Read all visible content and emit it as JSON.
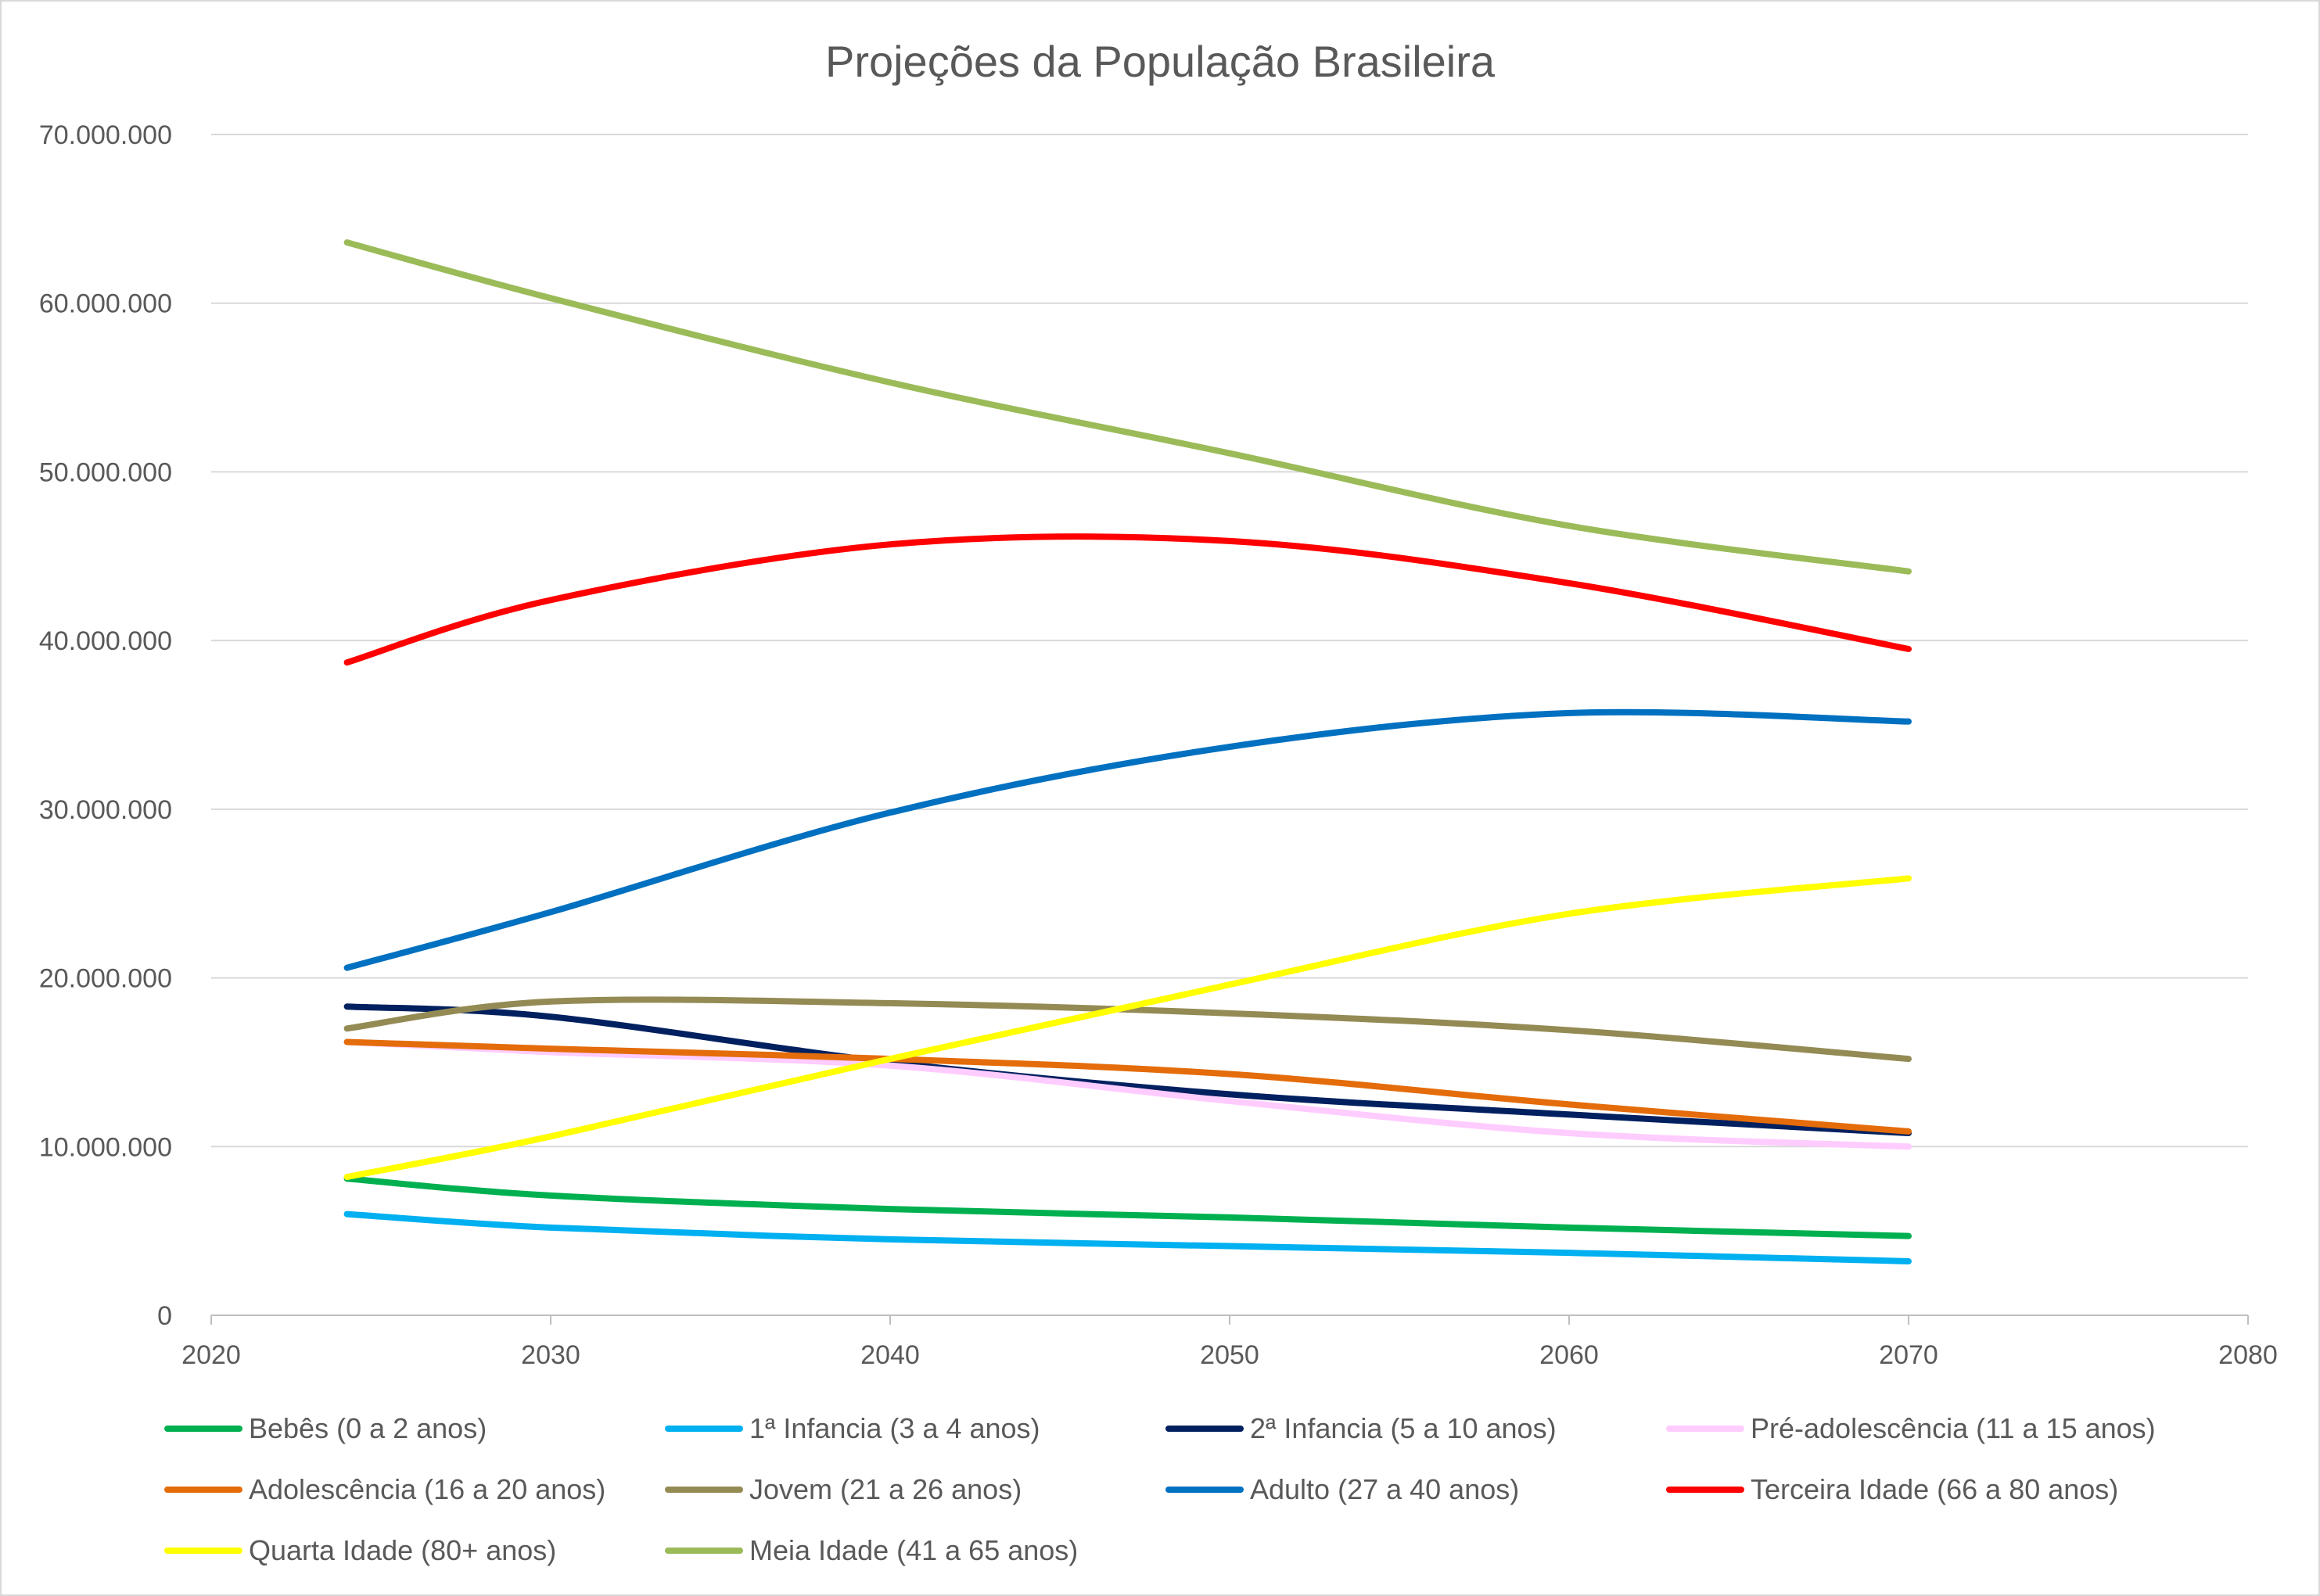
{
  "chart_data": {
    "type": "line",
    "title": "Projeções da População Brasileira",
    "xlabel": "",
    "ylabel": "",
    "xlim": [
      2020,
      2080
    ],
    "ylim": [
      0,
      70000000
    ],
    "x_ticks": [
      2020,
      2030,
      2040,
      2050,
      2060,
      2070,
      2080
    ],
    "y_ticks": [
      0,
      10000000,
      20000000,
      30000000,
      40000000,
      50000000,
      60000000,
      70000000
    ],
    "y_tick_labels": [
      "0",
      "10.000.000",
      "20.000.000",
      "30.000.000",
      "40.000.000",
      "50.000.000",
      "60.000.000",
      "70.000.000"
    ],
    "x_tick_labels": [
      "2020",
      "2030",
      "2040",
      "2050",
      "2060",
      "2070",
      "2080"
    ],
    "grid": "horizontal",
    "legend_position": "bottom",
    "x": [
      2024,
      2030,
      2040,
      2050,
      2060,
      2070
    ],
    "series": [
      {
        "name": "Bebês (0 a 2 anos)",
        "color": "#00b050",
        "values": [
          8100000,
          7100000,
          6300000,
          5800000,
          5200000,
          4700000
        ]
      },
      {
        "name": "1ª Infancia (3 a 4 anos)",
        "color": "#00b0f0",
        "values": [
          6000000,
          5200000,
          4500000,
          4100000,
          3700000,
          3200000
        ]
      },
      {
        "name": "2ª Infancia (5 a 10 anos)",
        "color": "#002060",
        "values": [
          18300000,
          17700000,
          15000000,
          13100000,
          11900000,
          10800000
        ]
      },
      {
        "name": "Pré-adolescência (11 a 15 anos)",
        "color": "#ffccff",
        "values": [
          16200000,
          15600000,
          14800000,
          12700000,
          10800000,
          10000000
        ]
      },
      {
        "name": "Adolescência (16 a 20 anos)",
        "color": "#e46c0a",
        "values": [
          16200000,
          15800000,
          15200000,
          14300000,
          12500000,
          10900000
        ]
      },
      {
        "name": "Jovem (21 a 26 anos)",
        "color": "#948a54",
        "values": [
          17000000,
          18600000,
          18500000,
          17900000,
          16900000,
          15200000
        ]
      },
      {
        "name": "Adulto (27 a 40 anos)",
        "color": "#0070c0",
        "values": [
          20600000,
          23900000,
          29800000,
          33700000,
          35700000,
          35200000
        ]
      },
      {
        "name": "Terceira Idade (66 a 80 anos)",
        "color": "#ff0000",
        "values": [
          38700000,
          42400000,
          45700000,
          45900000,
          43400000,
          39500000
        ]
      },
      {
        "name": "Quarta Idade (80+ anos)",
        "color": "#ffff00",
        "values": [
          8200000,
          10600000,
          15200000,
          19600000,
          23800000,
          25900000
        ]
      },
      {
        "name": "Meia Idade (41 a 65 anos)",
        "color": "#9bbb59",
        "values": [
          63600000,
          60300000,
          55300000,
          51100000,
          46800000,
          44100000
        ]
      }
    ]
  }
}
